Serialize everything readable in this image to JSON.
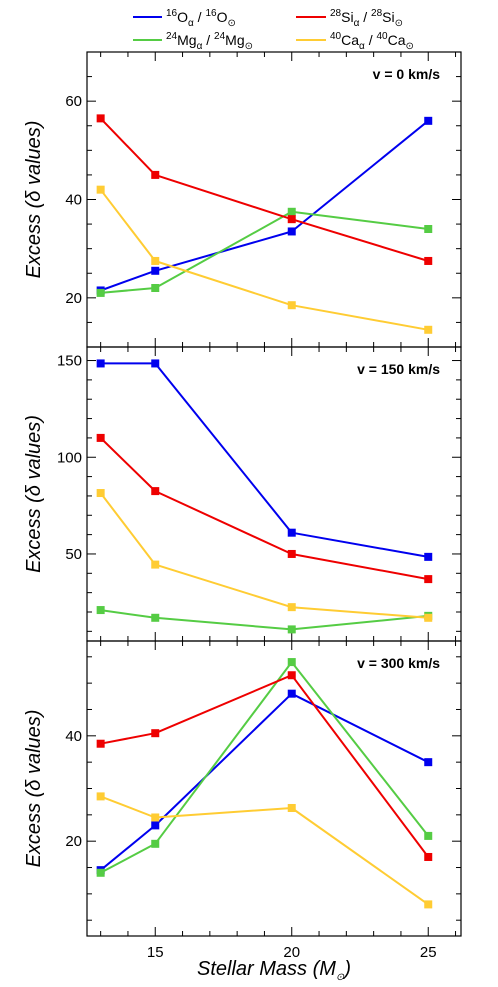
{
  "chart_data": {
    "type": "line",
    "x": [
      13,
      15,
      20,
      25
    ],
    "xlim": [
      12.5,
      26.2
    ],
    "x_ticks": [
      "15",
      "20",
      "25"
    ],
    "xlabel": "Stellar Mass (M⊙)",
    "xlabel_text": "Stellar Mass (M",
    "xlabel_sub": "⊙",
    "xlabel_close": ")",
    "legend_placement": "top",
    "series_meta": [
      {
        "iso": "16",
        "el": "O",
        "color": "#0000ee"
      },
      {
        "iso": "24",
        "el": "Mg",
        "color": "#55cc44"
      },
      {
        "iso": "28",
        "el": "Si",
        "color": "#ee0000"
      },
      {
        "iso": "40",
        "el": "Ca",
        "color": "#ffcc33"
      }
    ],
    "legend_text": {
      "sub_alpha": "α",
      "sub_sun": "⊙",
      "slash": " / "
    },
    "panels": [
      {
        "label": "v = 0 km/s",
        "ylabel": "Excess (δ values)",
        "ylim": [
          10,
          70
        ],
        "yticks": [
          20,
          40,
          60
        ],
        "series": [
          {
            "name": "16Oα / 16O⊙",
            "values": [
              21.5,
              25.5,
              33.5,
              56
            ]
          },
          {
            "name": "24Mgα / 24Mg⊙",
            "values": [
              21,
              22,
              37.5,
              34
            ]
          },
          {
            "name": "28Siα / 28Si⊙",
            "values": [
              56.5,
              45,
              36,
              27.5
            ]
          },
          {
            "name": "40Caα / 40Ca⊙",
            "values": [
              42,
              27.5,
              18.5,
              13.5
            ]
          }
        ]
      },
      {
        "label": "v = 150 km/s",
        "ylabel": "Excess (δ values)",
        "ylim": [
          5,
          157
        ],
        "yticks": [
          50,
          100,
          150
        ],
        "series": [
          {
            "name": "16Oα / 16O⊙",
            "values": [
              148.5,
              148.5,
              61,
              48.5
            ]
          },
          {
            "name": "24Mgα / 24Mg⊙",
            "values": [
              21,
              17,
              11,
              18
            ]
          },
          {
            "name": "28Siα / 28Si⊙",
            "values": [
              110,
              82.5,
              50,
              37
            ]
          },
          {
            "name": "40Caα / 40Ca⊙",
            "values": [
              81.5,
              44.5,
              22.5,
              17
            ]
          }
        ]
      },
      {
        "label": "v = 300 km/s",
        "ylabel": "Excess (δ values)",
        "ylim": [
          2,
          58
        ],
        "yticks": [
          20,
          40
        ],
        "series": [
          {
            "name": "16Oα / 16O⊙",
            "values": [
              14.5,
              23,
              48,
              35
            ]
          },
          {
            "name": "24Mgα / 24Mg⊙",
            "values": [
              14,
              19.5,
              54,
              21
            ]
          },
          {
            "name": "28Siα / 28Si⊙",
            "values": [
              38.5,
              40.5,
              51.5,
              17
            ]
          },
          {
            "name": "40Caα / 40Ca⊙",
            "values": [
              28.5,
              24.5,
              26.3,
              8
            ]
          }
        ]
      }
    ]
  }
}
